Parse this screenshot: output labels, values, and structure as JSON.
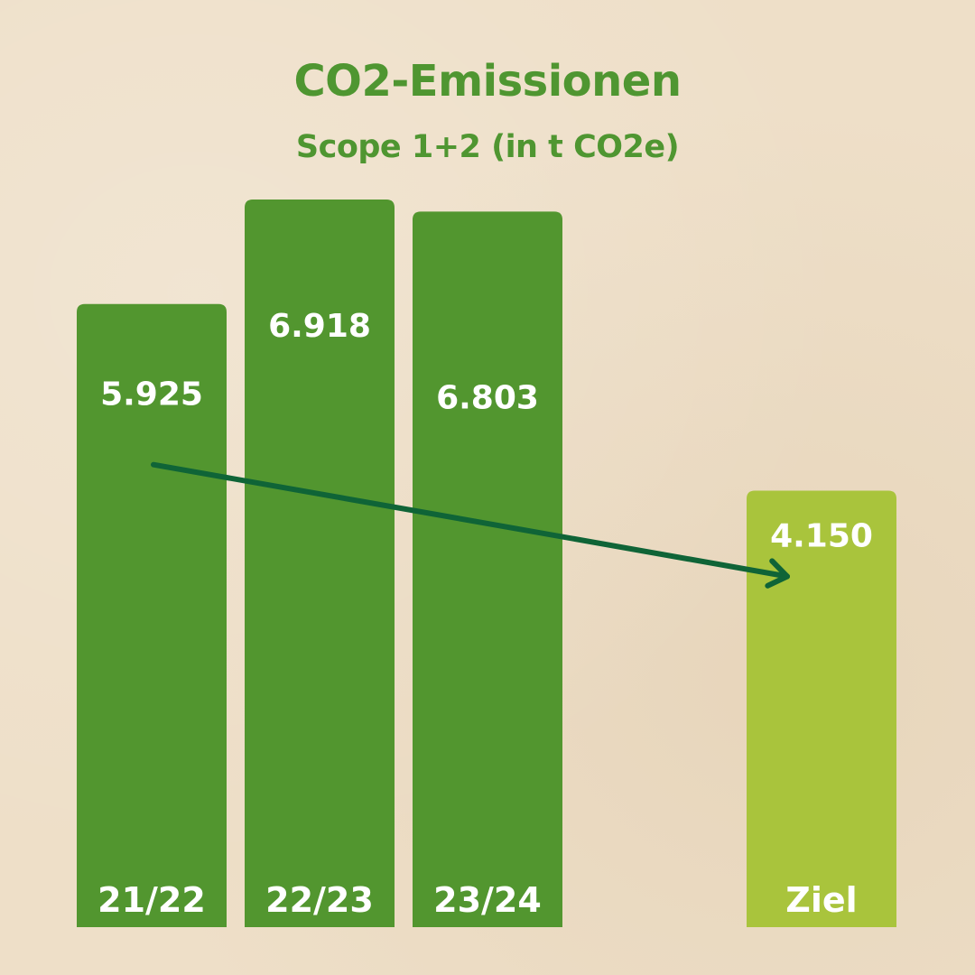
{
  "chart_data": {
    "type": "bar",
    "title": "CO2-Emissionen",
    "subtitle": "Scope 1+2 (in t CO2e)",
    "categories": [
      "21/22",
      "22/23",
      "23/24",
      "Ziel"
    ],
    "values": [
      5925,
      6918,
      6803,
      4150
    ],
    "value_labels": [
      "5.925",
      "6.918",
      "6.803",
      "4.150"
    ],
    "bar_colors": [
      "#52962f",
      "#52962f",
      "#52962f",
      "#a9c43c"
    ],
    "trend_arrow": {
      "from": "21/22",
      "to": "Ziel",
      "color": "#0f6437"
    },
    "xlabel": "",
    "ylabel": "",
    "grid": false,
    "legend": "none"
  },
  "colors": {
    "background": "#eedfc8",
    "title": "#4f9631",
    "bar_text": "#ffffff"
  }
}
